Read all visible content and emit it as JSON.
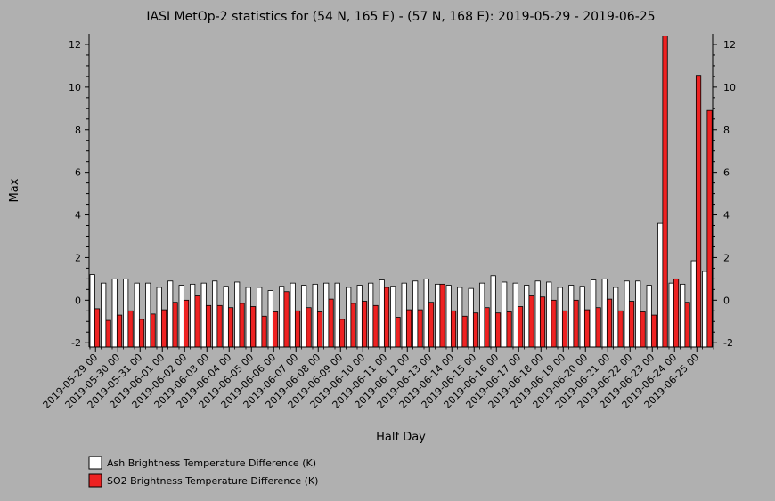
{
  "chart_data": {
    "type": "bar",
    "title": "IASI MetOp-2 statistics for (54 N, 165 E) - (57 N, 168 E): 2019-05-29 - 2019-06-25",
    "xlabel": "Half Day",
    "ylabel": "Max",
    "ylim": [
      -2.2,
      12.5
    ],
    "yticks": [
      -2,
      0,
      2,
      4,
      6,
      8,
      10,
      12
    ],
    "grid": false,
    "legend_position": "bottom-left",
    "tick_labels": [
      "2019-05-29 00",
      "2019-05-30 00",
      "2019-05-31 00",
      "2019-06-01 00",
      "2019-06-02 00",
      "2019-06-03 00",
      "2019-06-04 00",
      "2019-06-05 00",
      "2019-06-06 00",
      "2019-06-07 00",
      "2019-06-08 00",
      "2019-06-09 00",
      "2019-06-10 00",
      "2019-06-11 00",
      "2019-06-12 00",
      "2019-06-13 00",
      "2019-06-14 00",
      "2019-06-15 00",
      "2019-06-16 00",
      "2019-06-17 00",
      "2019-06-18 00",
      "2019-06-19 00",
      "2019-06-20 00",
      "2019-06-21 00",
      "2019-06-22 00",
      "2019-06-23 00",
      "2019-06-24 00",
      "2019-06-25 00"
    ],
    "series": [
      {
        "name": "Ash Brightness Temperature Difference (K)",
        "color": "#ffffff",
        "values": [
          1.2,
          0.8,
          1.0,
          1.0,
          0.8,
          0.8,
          0.6,
          0.9,
          0.7,
          0.75,
          0.8,
          0.9,
          0.65,
          0.85,
          0.6,
          0.6,
          0.45,
          0.65,
          0.8,
          0.7,
          0.75,
          0.8,
          0.8,
          0.6,
          0.7,
          0.8,
          0.95,
          0.65,
          0.8,
          0.9,
          1.0,
          0.75,
          0.7,
          0.6,
          0.55,
          0.8,
          1.15,
          0.85,
          0.8,
          0.7,
          0.9,
          0.85,
          0.6,
          0.7,
          0.65,
          0.95,
          1.0,
          0.6,
          0.9,
          0.9,
          0.7,
          3.6,
          0.8,
          0.75,
          1.85,
          1.35
        ]
      },
      {
        "name": "SO2 Brightness Temperature Difference (K)",
        "color": "#ee2222",
        "values": [
          -0.4,
          -0.95,
          -0.7,
          -0.5,
          -0.9,
          -0.65,
          -0.45,
          -0.1,
          0.0,
          0.2,
          -0.25,
          -0.25,
          -0.35,
          -0.15,
          -0.3,
          -0.75,
          -0.55,
          0.4,
          -0.5,
          -0.35,
          -0.55,
          0.05,
          -0.9,
          -0.15,
          -0.05,
          -0.25,
          0.6,
          -0.8,
          -0.45,
          -0.45,
          -0.1,
          0.75,
          -0.5,
          -0.75,
          -0.6,
          -0.35,
          -0.6,
          -0.55,
          -0.3,
          0.2,
          0.15,
          0.0,
          -0.5,
          0.0,
          -0.45,
          -0.35,
          0.05,
          -0.5,
          -0.05,
          -0.55,
          -0.7,
          12.4,
          1.0,
          -0.1,
          10.55,
          8.9
        ]
      }
    ]
  }
}
